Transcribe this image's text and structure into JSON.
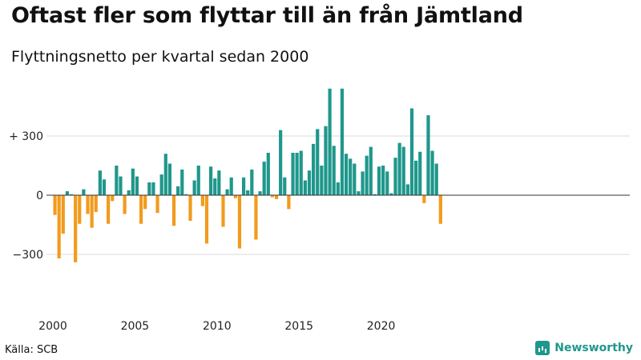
{
  "title": "Oftast fler som flyttar till än från Jämtland",
  "subtitle": "Flyttningsnetto per kvartal sedan 2000",
  "source": "Källa: SCB",
  "brand": "Newsworthy",
  "icons": {
    "brand_logo": "newsworthy-chart-icon"
  },
  "colors": {
    "positive": "#1f978c",
    "negative": "#f29b1d",
    "grid": "#d9d9d9",
    "baseline": "#333333"
  },
  "chart_data": {
    "type": "bar",
    "ylim": [
      -420,
      600
    ],
    "y_ticks": [
      300,
      0,
      -300
    ],
    "y_tick_labels": [
      "+ 300",
      "0",
      "−300"
    ],
    "x_tick_labels": [
      "2000",
      "2005",
      "2010",
      "2015",
      "2020"
    ],
    "x_tick_years": [
      2000,
      2005,
      2010,
      2015,
      2020
    ],
    "start_year": 2000,
    "grid": true,
    "legend": "none",
    "series": [
      {
        "values": [
          -100,
          -320,
          -195,
          20,
          5,
          -340,
          -145,
          30,
          -95,
          -165,
          -85,
          125,
          80,
          -145,
          -30,
          150,
          95,
          -95,
          25,
          135,
          95,
          -145,
          -70,
          65,
          65,
          -90,
          105,
          210,
          160,
          -155,
          45,
          130,
          5,
          -130,
          75,
          150,
          -55,
          -245,
          145,
          85,
          125,
          -160,
          30,
          90,
          -15,
          -270,
          90,
          25,
          130,
          -225,
          20,
          170,
          215,
          -10,
          -20,
          330,
          90,
          -70,
          215,
          215,
          225,
          75,
          125,
          260,
          335,
          150,
          350,
          540,
          250,
          65,
          540,
          210,
          185,
          160,
          20,
          120,
          200,
          245,
          5,
          145,
          150,
          120,
          10,
          190,
          265,
          245,
          55,
          440,
          175,
          220,
          -40,
          405,
          225,
          160,
          -145
        ]
      }
    ]
  }
}
